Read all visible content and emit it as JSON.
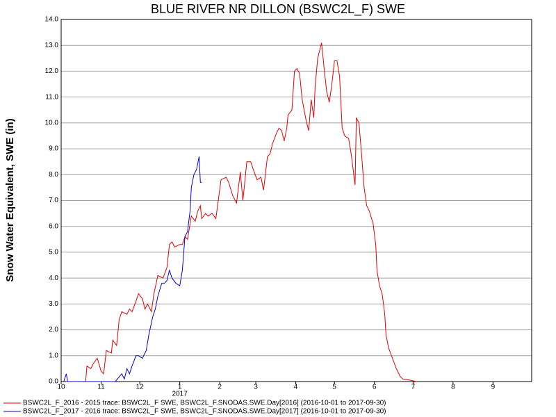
{
  "chart_data": {
    "type": "line",
    "title": "BLUE RIVER NR DILLON (BSWC2L_F) SWE",
    "y_label": "Snow Water Equivalent, SWE (in)",
    "year_label": "2017",
    "xlim": [
      0,
      365
    ],
    "xticks": [
      {
        "value": 0,
        "label": "10"
      },
      {
        "value": 31,
        "label": "11"
      },
      {
        "value": 61,
        "label": "12"
      },
      {
        "value": 92,
        "label": "1"
      },
      {
        "value": 123,
        "label": "2"
      },
      {
        "value": 151,
        "label": "3"
      },
      {
        "value": 182,
        "label": "4"
      },
      {
        "value": 212,
        "label": "5"
      },
      {
        "value": 243,
        "label": "6"
      },
      {
        "value": 273,
        "label": "7"
      },
      {
        "value": 304,
        "label": "8"
      },
      {
        "value": 335,
        "label": "9"
      }
    ],
    "ylim": [
      0,
      14
    ],
    "yticks": [
      {
        "value": 0,
        "label": "0.0"
      },
      {
        "value": 1,
        "label": "1.0"
      },
      {
        "value": 2,
        "label": "2.0"
      },
      {
        "value": 3,
        "label": "3.0"
      },
      {
        "value": 4,
        "label": "4.0"
      },
      {
        "value": 5,
        "label": "5.0"
      },
      {
        "value": 6,
        "label": "6.0"
      },
      {
        "value": 7,
        "label": "7.0"
      },
      {
        "value": 8,
        "label": "8.0"
      },
      {
        "value": 9,
        "label": "9.0"
      },
      {
        "value": 10,
        "label": "10.0"
      },
      {
        "value": 11,
        "label": "11.0"
      },
      {
        "value": 12,
        "label": "12.0"
      },
      {
        "value": 13,
        "label": "13.0"
      },
      {
        "value": 14,
        "label": "14.0"
      }
    ],
    "grid": true,
    "series": [
      {
        "name": "BSWC2L_F_2016 - 2015 trace: BSWC2L_F SWE, BSWC2L_F.SNODAS.SWE.Day[2016] (2016-10-01 to 2017-09-30)",
        "color": "#e00000",
        "x": [
          4,
          19,
          20,
          23,
          25,
          28,
          31,
          33,
          35,
          39,
          40,
          43,
          45,
          47,
          51,
          53,
          55,
          58,
          60,
          63,
          65,
          67,
          70,
          72,
          75,
          79,
          82,
          84,
          86,
          88,
          92,
          94,
          96,
          98,
          101,
          104,
          106,
          108,
          109,
          112,
          114,
          117,
          120,
          124,
          128,
          130,
          133,
          136,
          139,
          141,
          144,
          147,
          149,
          152,
          155,
          157,
          160,
          162,
          164,
          167,
          169,
          171,
          173,
          175,
          176,
          179,
          181,
          183,
          185,
          187,
          190,
          192,
          194,
          196,
          197,
          199,
          202,
          204,
          206,
          208,
          210,
          212,
          214,
          216,
          218,
          220,
          223,
          225,
          228,
          229,
          231,
          233,
          235,
          237,
          239,
          242,
          244,
          245,
          247,
          249,
          251,
          252,
          254,
          257,
          260,
          263,
          265,
          271,
          276
        ],
        "values": [
          0,
          0,
          0.6,
          0.5,
          0.7,
          0.9,
          0.4,
          0.3,
          1.2,
          1.1,
          1.6,
          1.4,
          2.4,
          2.7,
          2.6,
          2.8,
          2.7,
          3.1,
          3.4,
          3.2,
          2.8,
          3.0,
          2.7,
          3.4,
          4.1,
          4.0,
          4.4,
          5.3,
          5.4,
          5.2,
          5.3,
          5.3,
          5.6,
          5.5,
          6.4,
          6.2,
          6.6,
          6.8,
          6.3,
          6.5,
          6.4,
          6.5,
          6.3,
          7.8,
          7.9,
          7.7,
          7.2,
          6.9,
          8.1,
          7.0,
          8.5,
          8.5,
          8.2,
          7.8,
          7.9,
          7.4,
          8.7,
          8.8,
          9.2,
          9.6,
          9.8,
          9.7,
          9.3,
          9.8,
          10.3,
          10.5,
          12.0,
          12.1,
          11.9,
          10.9,
          10.1,
          9.7,
          10.9,
          10.2,
          11.4,
          12.5,
          13.1,
          12.1,
          11.2,
          10.8,
          11.5,
          12.4,
          12.4,
          11.8,
          9.8,
          9.5,
          9.4,
          8.8,
          7.6,
          10.2,
          10.0,
          8.8,
          7.5,
          6.8,
          6.6,
          6.1,
          5.3,
          4.3,
          3.7,
          3.4,
          2.6,
          1.8,
          1.3,
          0.9,
          0.5,
          0.2,
          0.1,
          0.05,
          0
        ]
      },
      {
        "name": "BSWC2L_F_2017 - 2016 trace: BSWC2L_F SWE, BSWC2L_F.SNODAS.SWE.Day[2017] (2016-10-01 to 2017-09-30)",
        "color": "#0000d0",
        "x": [
          2,
          4,
          5,
          33,
          42,
          47,
          49,
          51,
          53,
          55,
          58,
          60,
          63,
          66,
          68,
          71,
          73,
          75,
          78,
          80,
          82,
          84,
          86,
          89,
          92,
          94,
          96,
          98,
          100,
          101,
          103,
          105,
          107,
          108,
          109
        ],
        "values": [
          0,
          0.3,
          0,
          0,
          0,
          0.3,
          0.1,
          0.5,
          0.3,
          0.6,
          1.0,
          1.0,
          0.9,
          1.2,
          1.8,
          2.5,
          2.8,
          3.3,
          3.8,
          3.8,
          3.9,
          4.3,
          4.0,
          3.8,
          3.7,
          4.3,
          5.6,
          5.8,
          6.6,
          7.5,
          8.0,
          8.2,
          8.7,
          7.7,
          7.7
        ]
      }
    ]
  }
}
